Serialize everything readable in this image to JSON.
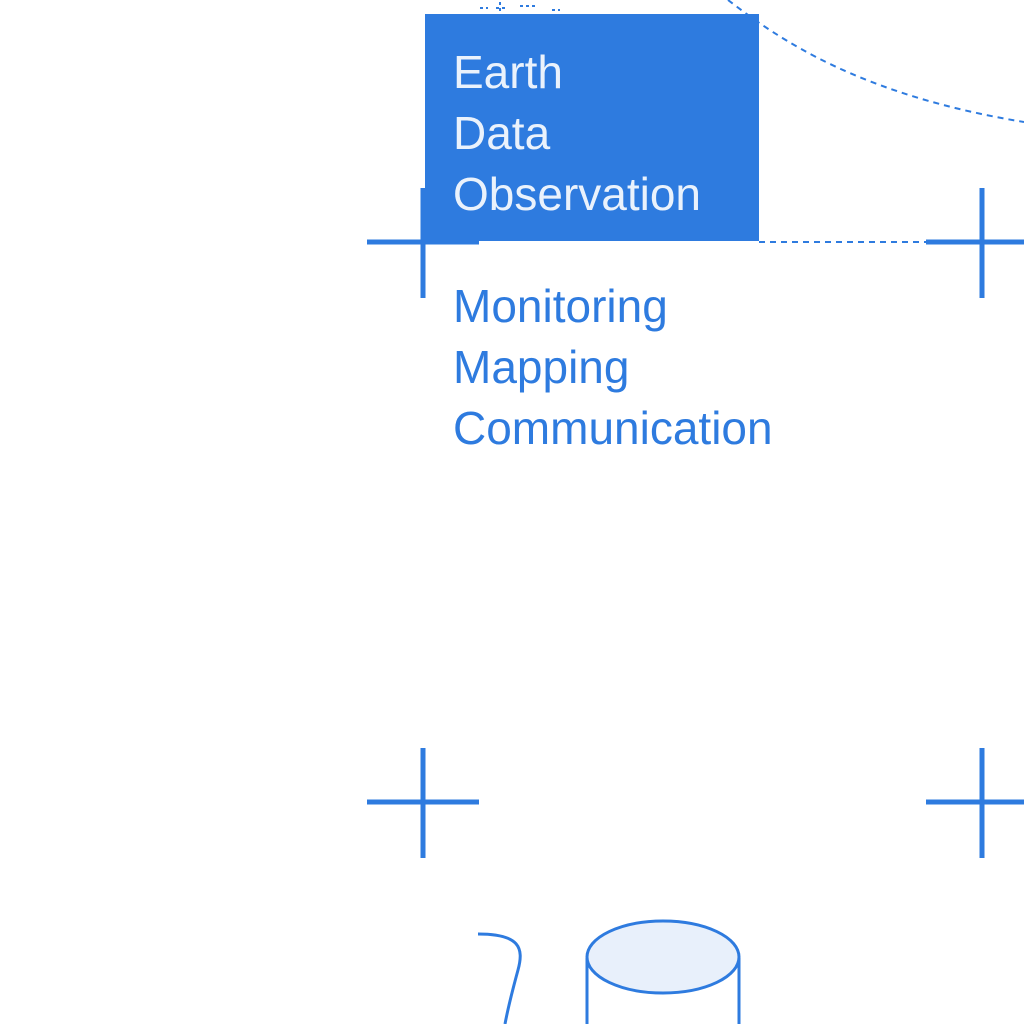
{
  "title_box": {
    "lines": [
      "Earth",
      "Data",
      "Observation"
    ]
  },
  "items": [
    "Monitoring",
    "Mapping",
    "Communication"
  ],
  "colors": {
    "accent": "#2e7bdf",
    "title_text": "#eaf2fc",
    "cylinder_fill": "#e8f0fb",
    "background": "#ffffff"
  }
}
